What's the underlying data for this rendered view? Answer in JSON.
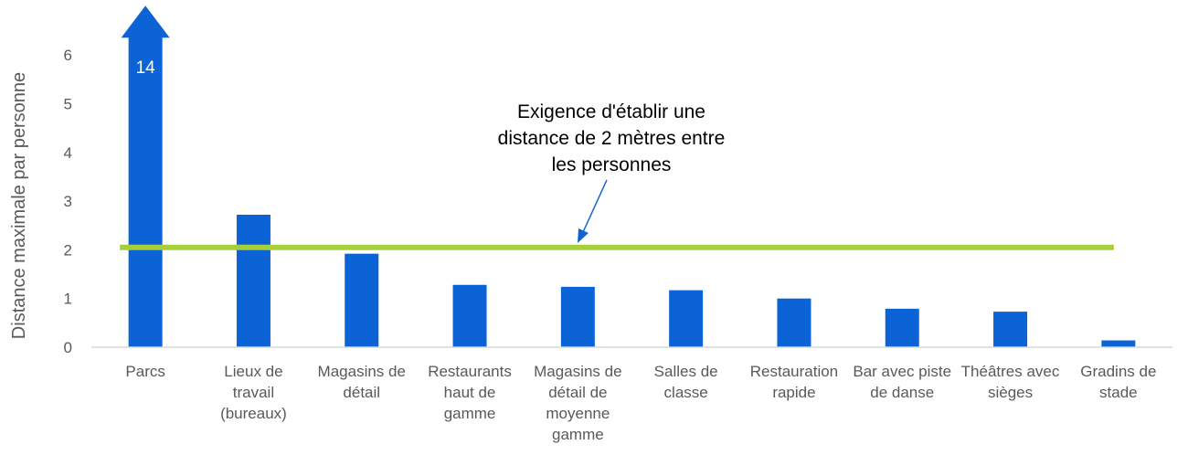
{
  "chart_data": {
    "type": "bar",
    "ylabel": "Distance maximale par personne",
    "ylim": [
      0,
      6
    ],
    "yticks": [
      0,
      1,
      2,
      3,
      4,
      5,
      6
    ],
    "categories": [
      [
        "Parcs"
      ],
      [
        "Lieux de",
        "travail",
        "(bureaux)"
      ],
      [
        "Magasins de",
        "détail"
      ],
      [
        "Restaurants",
        "haut de",
        "gamme"
      ],
      [
        "Magasins de",
        "détail de",
        "moyenne",
        "gamme"
      ],
      [
        "Salles de",
        "classe"
      ],
      [
        "Restauration",
        "rapide"
      ],
      [
        "Bar avec piste",
        "de danse"
      ],
      [
        "Théâtres avec",
        "sièges"
      ],
      [
        "Gradins de",
        "stade"
      ]
    ],
    "values": [
      14,
      2.72,
      1.92,
      1.28,
      1.24,
      1.17,
      1.0,
      0.79,
      0.73,
      0.14
    ],
    "data_labels": [
      "14",
      "",
      "",
      "",
      "",
      "",
      "",
      "",
      "",
      ""
    ],
    "reference_line": {
      "value": 2.05,
      "color": "#a7cf3a"
    },
    "annotation": [
      "Exigence d'établir une",
      "distance de 2 mètres entre",
      "les personnes"
    ],
    "bar_color": "#0b63d6",
    "grid": false
  }
}
